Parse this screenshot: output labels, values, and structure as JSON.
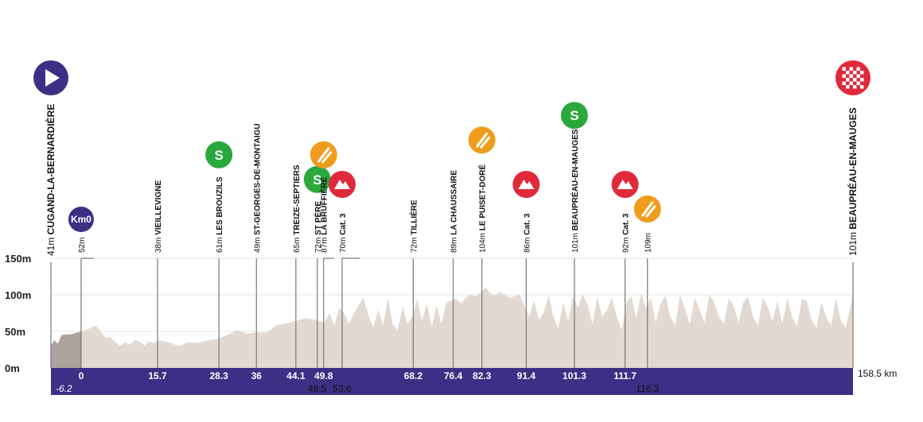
{
  "chart_data": {
    "type": "area",
    "title": "",
    "xlabel": "",
    "ylabel": "",
    "ylim": [
      0,
      150
    ],
    "xlim": [
      -6.2,
      158.5
    ],
    "y_ticks": [
      "0m",
      "50m",
      "100m",
      "150m"
    ],
    "total_distance_label": "158.5 km",
    "neutral_start_label": "-6.2",
    "grid": true,
    "colors": {
      "band": "#3b3085",
      "fill": "#e2dad2",
      "neutral": "#aba39c",
      "sprint": "#2aa83c",
      "climb": "#e02a3b",
      "feed": "#ef9c1d",
      "start": "#3b3085",
      "finish": "#e02a3b"
    },
    "elevation": [
      [
        -6.2,
        30
      ],
      [
        -5.5,
        38
      ],
      [
        -4.8,
        33
      ],
      [
        -4,
        45
      ],
      [
        -3,
        46
      ],
      [
        -2,
        46
      ],
      [
        -1,
        48
      ],
      [
        0,
        50
      ],
      [
        1,
        52
      ],
      [
        2,
        55
      ],
      [
        3,
        58
      ],
      [
        4,
        50
      ],
      [
        5,
        42
      ],
      [
        6,
        42
      ],
      [
        7,
        36
      ],
      [
        8,
        30
      ],
      [
        9,
        35
      ],
      [
        10,
        32
      ],
      [
        11,
        38
      ],
      [
        12,
        36
      ],
      [
        13,
        31
      ],
      [
        14,
        36
      ],
      [
        15,
        34
      ],
      [
        16,
        38
      ],
      [
        18,
        35
      ],
      [
        20,
        30
      ],
      [
        22,
        35
      ],
      [
        24,
        34
      ],
      [
        26,
        38
      ],
      [
        28,
        40
      ],
      [
        30,
        45
      ],
      [
        32,
        52
      ],
      [
        34,
        47
      ],
      [
        36,
        49
      ],
      [
        38,
        48
      ],
      [
        40,
        58
      ],
      [
        42,
        61
      ],
      [
        44,
        64
      ],
      [
        46,
        68
      ],
      [
        48,
        66
      ],
      [
        50,
        62
      ],
      [
        51,
        75
      ],
      [
        52,
        58
      ],
      [
        53,
        82
      ],
      [
        54,
        75
      ],
      [
        55,
        60
      ],
      [
        56,
        75
      ],
      [
        58,
        96
      ],
      [
        59,
        72
      ],
      [
        60,
        55
      ],
      [
        61,
        80
      ],
      [
        62,
        58
      ],
      [
        63,
        95
      ],
      [
        64,
        60
      ],
      [
        65,
        52
      ],
      [
        66,
        84
      ],
      [
        67,
        60
      ],
      [
        68,
        70
      ],
      [
        69,
        94
      ],
      [
        70,
        65
      ],
      [
        71,
        88
      ],
      [
        72,
        56
      ],
      [
        73,
        86
      ],
      [
        74,
        60
      ],
      [
        75,
        90
      ],
      [
        76,
        92
      ],
      [
        77,
        95
      ],
      [
        78,
        88
      ],
      [
        79,
        96
      ],
      [
        80,
        100
      ],
      [
        81,
        98
      ],
      [
        82,
        102
      ],
      [
        83,
        110
      ],
      [
        84,
        103
      ],
      [
        85,
        99
      ],
      [
        86,
        104
      ],
      [
        88,
        96
      ],
      [
        90,
        101
      ],
      [
        91,
        86
      ],
      [
        92,
        70
      ],
      [
        93,
        92
      ],
      [
        94,
        66
      ],
      [
        95,
        76
      ],
      [
        96,
        100
      ],
      [
        97,
        70
      ],
      [
        98,
        54
      ],
      [
        99,
        90
      ],
      [
        100,
        64
      ],
      [
        101,
        98
      ],
      [
        102,
        83
      ],
      [
        103,
        101
      ],
      [
        104,
        87
      ],
      [
        105,
        60
      ],
      [
        106,
        98
      ],
      [
        107,
        70
      ],
      [
        108,
        80
      ],
      [
        109,
        96
      ],
      [
        110,
        70
      ],
      [
        111,
        52
      ],
      [
        112,
        90
      ],
      [
        113,
        98
      ],
      [
        114,
        68
      ],
      [
        115,
        102
      ],
      [
        116,
        82
      ],
      [
        117,
        96
      ],
      [
        118,
        62
      ],
      [
        119,
        88
      ],
      [
        120,
        99
      ],
      [
        121,
        70
      ],
      [
        122,
        58
      ],
      [
        123,
        100
      ],
      [
        124,
        80
      ],
      [
        125,
        60
      ],
      [
        126,
        96
      ],
      [
        127,
        80
      ],
      [
        128,
        62
      ],
      [
        129,
        100
      ],
      [
        130,
        90
      ],
      [
        131,
        70
      ],
      [
        132,
        60
      ],
      [
        133,
        95
      ],
      [
        134,
        85
      ],
      [
        135,
        62
      ],
      [
        136,
        90
      ],
      [
        137,
        97
      ],
      [
        138,
        70
      ],
      [
        139,
        58
      ],
      [
        140,
        96
      ],
      [
        141,
        83
      ],
      [
        142,
        64
      ],
      [
        143,
        92
      ],
      [
        144,
        60
      ],
      [
        145,
        96
      ],
      [
        146,
        70
      ],
      [
        147,
        57
      ],
      [
        148,
        94
      ],
      [
        149,
        92
      ],
      [
        150,
        65
      ],
      [
        151,
        55
      ],
      [
        152,
        90
      ],
      [
        153,
        70
      ],
      [
        154,
        58
      ],
      [
        155,
        95
      ],
      [
        156,
        65
      ],
      [
        157,
        55
      ],
      [
        158.5,
        101
      ]
    ],
    "points": [
      {
        "x": -6.2,
        "label": "CUGAND-LA-BERNARDIÈRE",
        "alt": "41m",
        "icon": "start"
      },
      {
        "x": 0,
        "label": "",
        "alt": "52m",
        "icon": "km0",
        "icon_text": "Km0",
        "km": "0",
        "tick": "flag"
      },
      {
        "x": 15.7,
        "label": "VIEILLEVIGNE",
        "alt": "38m",
        "km": "15.7"
      },
      {
        "x": 28.3,
        "label": "LES BROUZILS",
        "alt": "61m",
        "icon": "sprint",
        "icon_text": "S",
        "km": "28.3"
      },
      {
        "x": 36,
        "label": "ST-GEORGES-DE-MONTAIGU",
        "alt": "49m",
        "km": "36"
      },
      {
        "x": 44.1,
        "label": "TREIZE-SEPTIERS",
        "alt": "65m",
        "km": "44.1"
      },
      {
        "x": 48.5,
        "label": "ST PÈRE",
        "alt": "72m",
        "icon": "sprint",
        "icon_text": "S",
        "km": "48.5",
        "km_row": 2
      },
      {
        "x": 49.8,
        "label": "LA BRUFFIÈRE",
        "alt": "87m",
        "icon": "feed",
        "km": "49.8",
        "tick": "flag"
      },
      {
        "x": 53.6,
        "label": "Cat. 3",
        "alt": "70m",
        "icon": "climb",
        "km": "53.6",
        "km_row": 2,
        "tick": "flag"
      },
      {
        "x": 68.2,
        "label": "TILLIÈRE",
        "alt": "72m",
        "km": "68.2"
      },
      {
        "x": 76.4,
        "label": "LA CHAUSSAIRE",
        "alt": "89m",
        "km": "76.4"
      },
      {
        "x": 82.3,
        "label": "LE PUISET-DORÉ",
        "alt": "104m",
        "icon": "feed",
        "km": "82.3"
      },
      {
        "x": 91.4,
        "label": "Cat. 3",
        "alt": "86m",
        "icon": "climb",
        "km": "91.4"
      },
      {
        "x": 101.3,
        "label": "BEAUPRÉAU-EN-MAUGES",
        "alt": "101m",
        "icon": "sprint",
        "icon_text": "S",
        "km": "101.3"
      },
      {
        "x": 111.7,
        "label": "Cat. 3",
        "alt": "92m",
        "icon": "climb",
        "km": "111.7"
      },
      {
        "x": 116.3,
        "label": "",
        "alt": "109m",
        "icon": "feed",
        "km": "116.3",
        "km_row": 2
      },
      {
        "x": 158.5,
        "label": "BEAUPRÉAU-EN-MAUGES",
        "alt": "101m",
        "icon": "finish"
      }
    ]
  }
}
